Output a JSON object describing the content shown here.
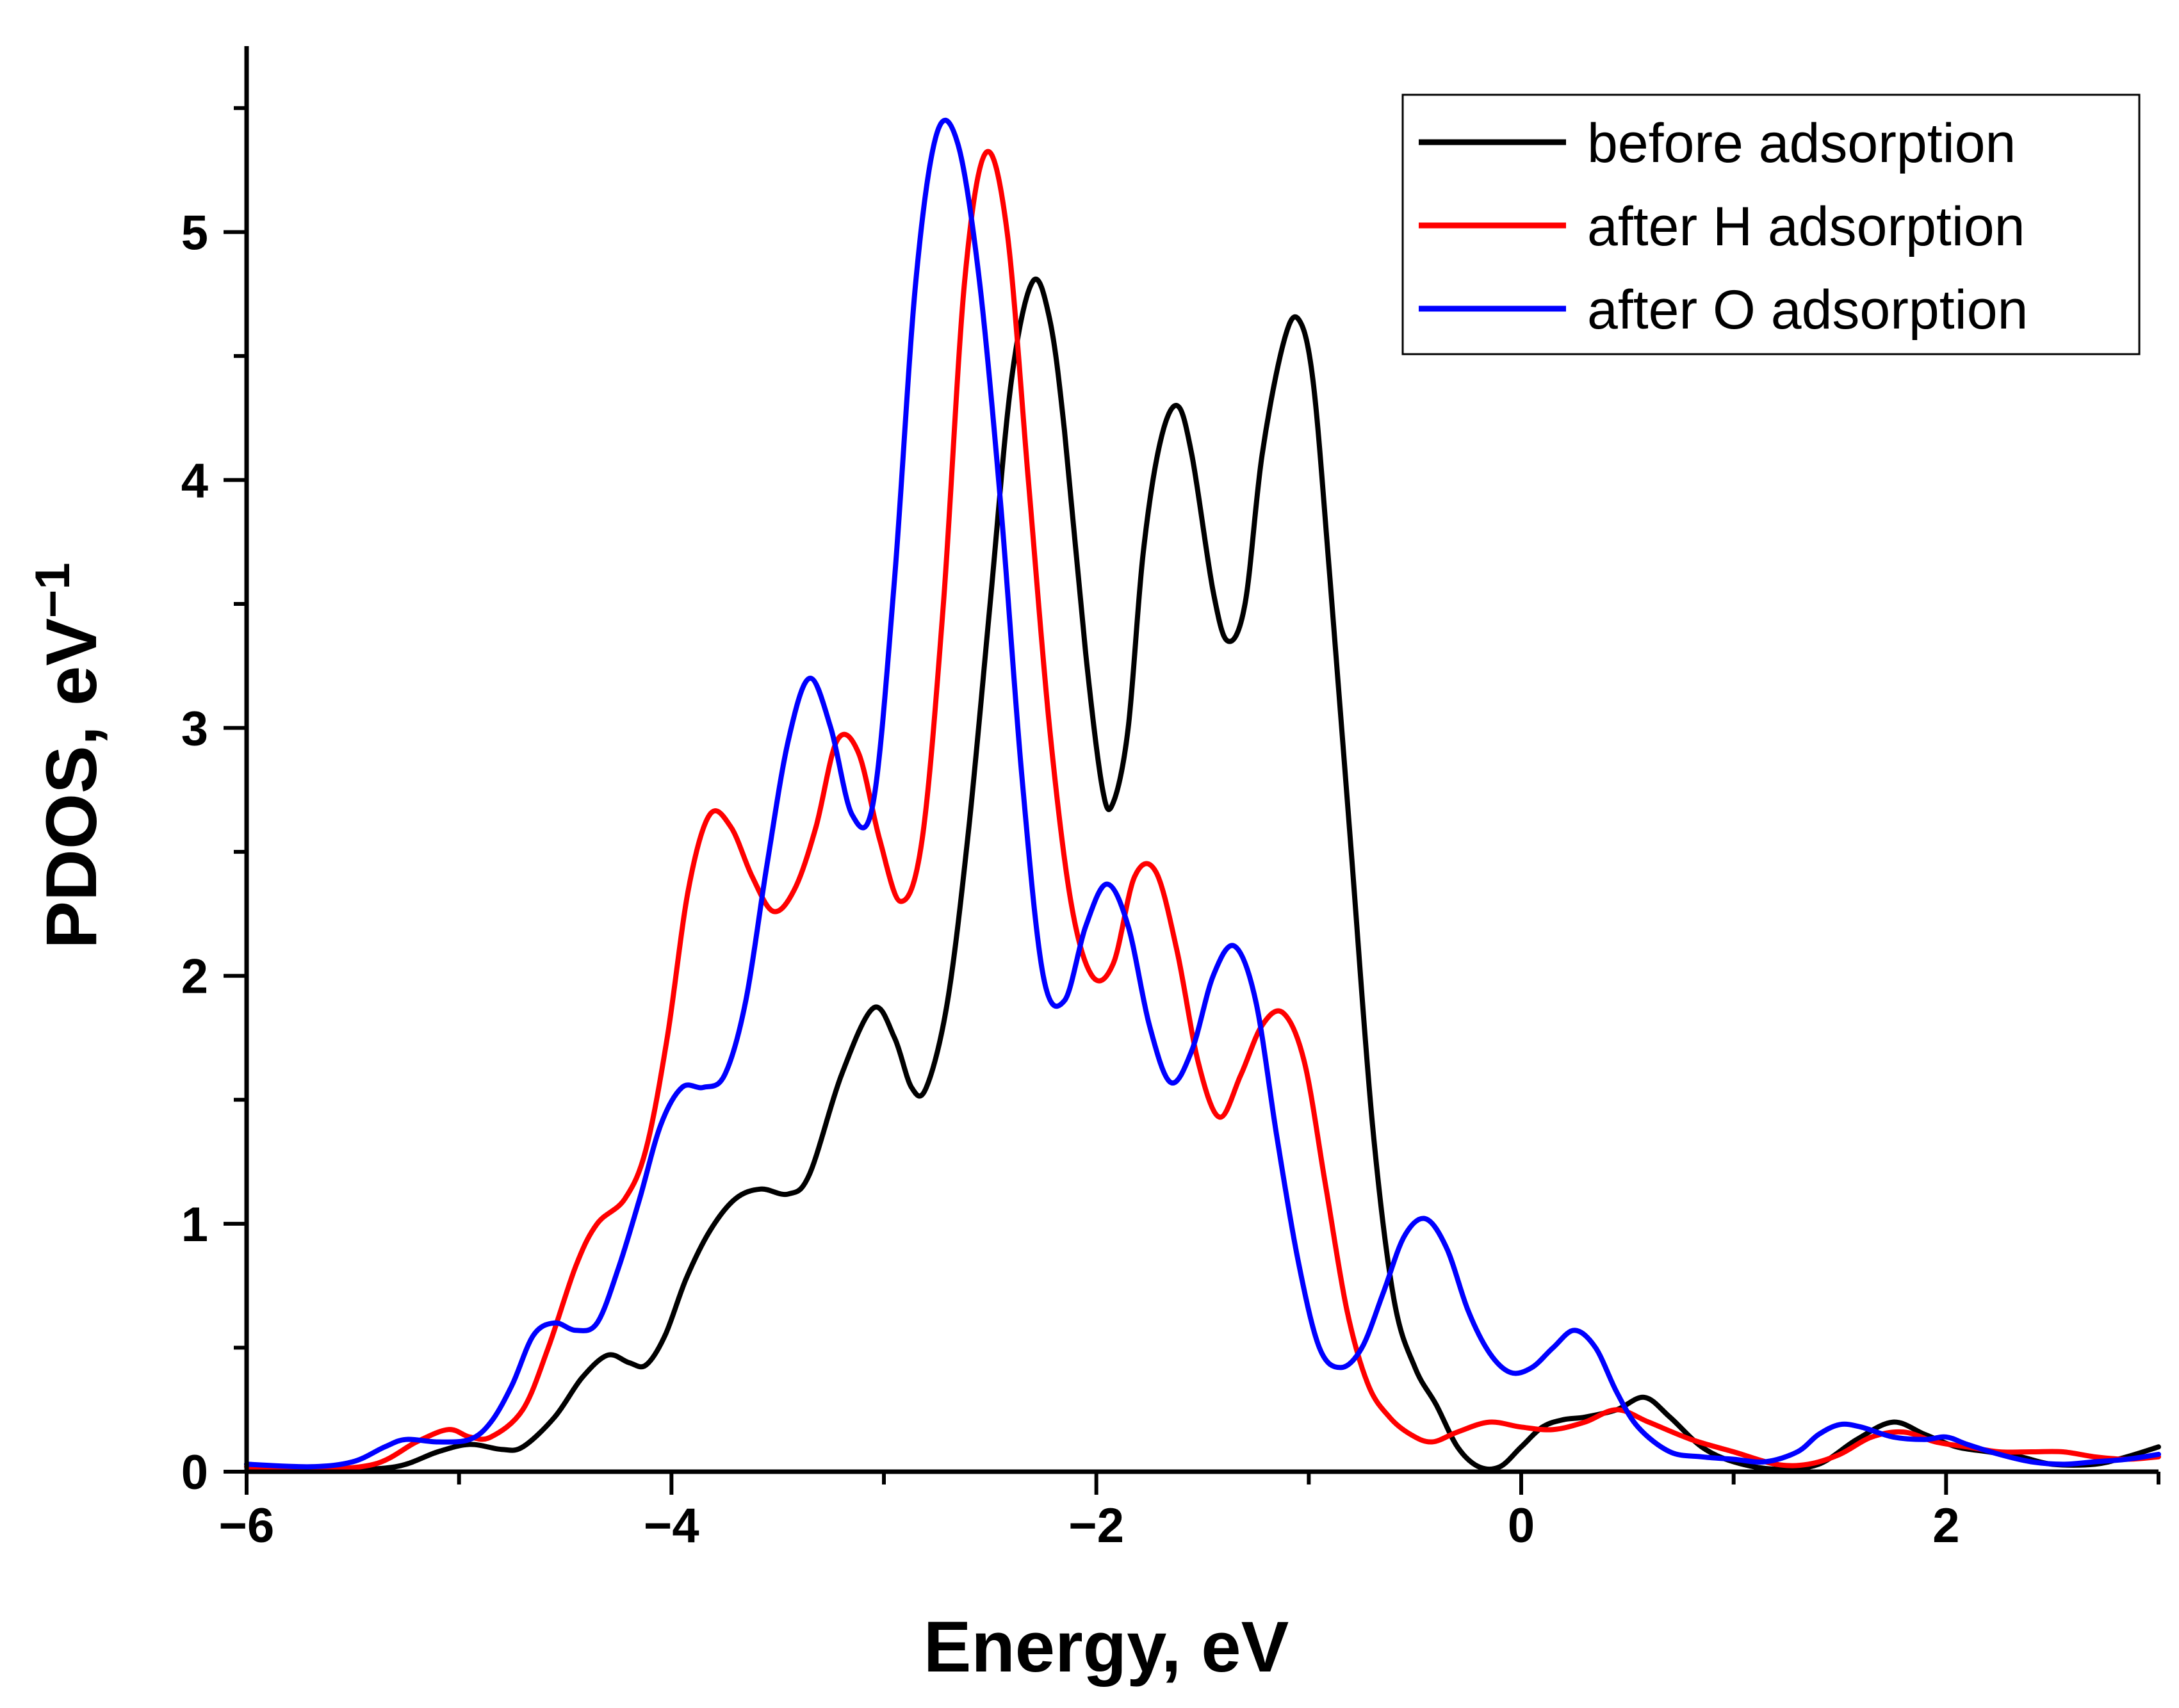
{
  "chart_data": {
    "type": "line",
    "title": "",
    "xlabel": "Energy, eV",
    "ylabel": "PDOS, eV",
    "ylabel_superscript": "−1",
    "xlim": [
      -6,
      3
    ],
    "ylim": [
      0,
      5.75
    ],
    "xticks": [
      -6,
      -4,
      -2,
      0,
      2
    ],
    "xtick_labels": [
      "−6",
      "−4",
      "−2",
      "0",
      "2"
    ],
    "yticks": [
      0,
      1,
      2,
      3,
      4,
      5
    ],
    "ytick_labels": [
      "0",
      "1",
      "2",
      "3",
      "4",
      "5"
    ],
    "legend_position": "top-right",
    "series": [
      {
        "name": "before adsorption",
        "color": "#000000",
        "points": [
          [
            -6.0,
            0.03
          ],
          [
            -5.6,
            0.01
          ],
          [
            -5.3,
            0.02
          ],
          [
            -5.1,
            0.08
          ],
          [
            -4.95,
            0.11
          ],
          [
            -4.8,
            0.09
          ],
          [
            -4.7,
            0.1
          ],
          [
            -4.55,
            0.22
          ],
          [
            -4.42,
            0.38
          ],
          [
            -4.3,
            0.47
          ],
          [
            -4.2,
            0.44
          ],
          [
            -4.12,
            0.43
          ],
          [
            -4.03,
            0.55
          ],
          [
            -3.93,
            0.78
          ],
          [
            -3.82,
            0.97
          ],
          [
            -3.7,
            1.1
          ],
          [
            -3.58,
            1.14
          ],
          [
            -3.45,
            1.12
          ],
          [
            -3.35,
            1.2
          ],
          [
            -3.2,
            1.6
          ],
          [
            -3.05,
            1.87
          ],
          [
            -2.95,
            1.75
          ],
          [
            -2.87,
            1.55
          ],
          [
            -2.8,
            1.55
          ],
          [
            -2.7,
            1.9
          ],
          [
            -2.6,
            2.6
          ],
          [
            -2.5,
            3.5
          ],
          [
            -2.4,
            4.4
          ],
          [
            -2.3,
            4.8
          ],
          [
            -2.22,
            4.65
          ],
          [
            -2.15,
            4.2
          ],
          [
            -2.05,
            3.3
          ],
          [
            -1.97,
            2.75
          ],
          [
            -1.92,
            2.7
          ],
          [
            -1.85,
            3.0
          ],
          [
            -1.78,
            3.7
          ],
          [
            -1.7,
            4.15
          ],
          [
            -1.62,
            4.3
          ],
          [
            -1.55,
            4.1
          ],
          [
            -1.45,
            3.55
          ],
          [
            -1.38,
            3.35
          ],
          [
            -1.3,
            3.5
          ],
          [
            -1.22,
            4.1
          ],
          [
            -1.12,
            4.55
          ],
          [
            -1.05,
            4.65
          ],
          [
            -0.98,
            4.4
          ],
          [
            -0.9,
            3.6
          ],
          [
            -0.8,
            2.5
          ],
          [
            -0.7,
            1.4
          ],
          [
            -0.6,
            0.7
          ],
          [
            -0.5,
            0.42
          ],
          [
            -0.4,
            0.27
          ],
          [
            -0.3,
            0.1
          ],
          [
            -0.2,
            0.02
          ],
          [
            -0.1,
            0.02
          ],
          [
            0.0,
            0.1
          ],
          [
            0.1,
            0.18
          ],
          [
            0.2,
            0.21
          ],
          [
            0.3,
            0.22
          ],
          [
            0.45,
            0.25
          ],
          [
            0.58,
            0.3
          ],
          [
            0.7,
            0.22
          ],
          [
            0.85,
            0.1
          ],
          [
            1.0,
            0.04
          ],
          [
            1.2,
            0.01
          ],
          [
            1.4,
            0.03
          ],
          [
            1.58,
            0.13
          ],
          [
            1.75,
            0.2
          ],
          [
            1.9,
            0.15
          ],
          [
            2.05,
            0.1
          ],
          [
            2.2,
            0.08
          ],
          [
            2.35,
            0.06
          ],
          [
            2.5,
            0.03
          ],
          [
            2.7,
            0.03
          ],
          [
            2.85,
            0.06
          ],
          [
            3.0,
            0.1
          ]
        ]
      },
      {
        "name": "after H adsorption",
        "color": "#ff0000",
        "points": [
          [
            -6.0,
            0.02
          ],
          [
            -5.7,
            0.01
          ],
          [
            -5.4,
            0.03
          ],
          [
            -5.2,
            0.12
          ],
          [
            -5.05,
            0.17
          ],
          [
            -4.95,
            0.14
          ],
          [
            -4.85,
            0.14
          ],
          [
            -4.7,
            0.25
          ],
          [
            -4.58,
            0.5
          ],
          [
            -4.45,
            0.83
          ],
          [
            -4.35,
            1.0
          ],
          [
            -4.22,
            1.1
          ],
          [
            -4.12,
            1.3
          ],
          [
            -4.02,
            1.75
          ],
          [
            -3.92,
            2.35
          ],
          [
            -3.82,
            2.65
          ],
          [
            -3.72,
            2.6
          ],
          [
            -3.62,
            2.4
          ],
          [
            -3.52,
            2.26
          ],
          [
            -3.42,
            2.35
          ],
          [
            -3.32,
            2.6
          ],
          [
            -3.22,
            2.95
          ],
          [
            -3.12,
            2.9
          ],
          [
            -3.02,
            2.55
          ],
          [
            -2.92,
            2.3
          ],
          [
            -2.82,
            2.55
          ],
          [
            -2.72,
            3.5
          ],
          [
            -2.62,
            4.8
          ],
          [
            -2.52,
            5.32
          ],
          [
            -2.42,
            5.0
          ],
          [
            -2.32,
            4.0
          ],
          [
            -2.22,
            3.0
          ],
          [
            -2.12,
            2.3
          ],
          [
            -2.02,
            2.0
          ],
          [
            -1.92,
            2.05
          ],
          [
            -1.82,
            2.4
          ],
          [
            -1.72,
            2.42
          ],
          [
            -1.62,
            2.1
          ],
          [
            -1.52,
            1.65
          ],
          [
            -1.42,
            1.43
          ],
          [
            -1.32,
            1.6
          ],
          [
            -1.22,
            1.8
          ],
          [
            -1.12,
            1.85
          ],
          [
            -1.02,
            1.65
          ],
          [
            -0.92,
            1.15
          ],
          [
            -0.82,
            0.65
          ],
          [
            -0.72,
            0.35
          ],
          [
            -0.62,
            0.22
          ],
          [
            -0.52,
            0.15
          ],
          [
            -0.42,
            0.12
          ],
          [
            -0.3,
            0.16
          ],
          [
            -0.15,
            0.2
          ],
          [
            0.0,
            0.18
          ],
          [
            0.15,
            0.17
          ],
          [
            0.3,
            0.2
          ],
          [
            0.45,
            0.25
          ],
          [
            0.6,
            0.2
          ],
          [
            0.8,
            0.13
          ],
          [
            1.0,
            0.08
          ],
          [
            1.2,
            0.03
          ],
          [
            1.35,
            0.03
          ],
          [
            1.5,
            0.07
          ],
          [
            1.65,
            0.14
          ],
          [
            1.8,
            0.16
          ],
          [
            1.95,
            0.12
          ],
          [
            2.1,
            0.1
          ],
          [
            2.25,
            0.08
          ],
          [
            2.4,
            0.08
          ],
          [
            2.55,
            0.08
          ],
          [
            2.7,
            0.06
          ],
          [
            2.85,
            0.05
          ],
          [
            3.0,
            0.06
          ]
        ]
      },
      {
        "name": "after O adsorption",
        "color": "#0000ff",
        "points": [
          [
            -6.0,
            0.03
          ],
          [
            -5.7,
            0.02
          ],
          [
            -5.5,
            0.04
          ],
          [
            -5.35,
            0.1
          ],
          [
            -5.25,
            0.13
          ],
          [
            -5.1,
            0.12
          ],
          [
            -4.95,
            0.13
          ],
          [
            -4.85,
            0.2
          ],
          [
            -4.75,
            0.35
          ],
          [
            -4.65,
            0.55
          ],
          [
            -4.55,
            0.6
          ],
          [
            -4.45,
            0.57
          ],
          [
            -4.35,
            0.6
          ],
          [
            -4.25,
            0.82
          ],
          [
            -4.15,
            1.1
          ],
          [
            -4.05,
            1.4
          ],
          [
            -3.95,
            1.55
          ],
          [
            -3.85,
            1.55
          ],
          [
            -3.75,
            1.6
          ],
          [
            -3.65,
            1.9
          ],
          [
            -3.55,
            2.45
          ],
          [
            -3.45,
            2.95
          ],
          [
            -3.35,
            3.2
          ],
          [
            -3.25,
            3.0
          ],
          [
            -3.15,
            2.65
          ],
          [
            -3.05,
            2.7
          ],
          [
            -2.95,
            3.6
          ],
          [
            -2.85,
            4.8
          ],
          [
            -2.75,
            5.4
          ],
          [
            -2.65,
            5.35
          ],
          [
            -2.55,
            4.8
          ],
          [
            -2.45,
            3.9
          ],
          [
            -2.35,
            2.8
          ],
          [
            -2.25,
            2.0
          ],
          [
            -2.15,
            1.9
          ],
          [
            -2.05,
            2.2
          ],
          [
            -1.95,
            2.37
          ],
          [
            -1.85,
            2.2
          ],
          [
            -1.75,
            1.8
          ],
          [
            -1.65,
            1.57
          ],
          [
            -1.55,
            1.7
          ],
          [
            -1.45,
            2.0
          ],
          [
            -1.35,
            2.12
          ],
          [
            -1.25,
            1.9
          ],
          [
            -1.15,
            1.35
          ],
          [
            -1.05,
            0.85
          ],
          [
            -0.95,
            0.5
          ],
          [
            -0.85,
            0.42
          ],
          [
            -0.75,
            0.5
          ],
          [
            -0.65,
            0.72
          ],
          [
            -0.55,
            0.95
          ],
          [
            -0.45,
            1.02
          ],
          [
            -0.35,
            0.9
          ],
          [
            -0.25,
            0.65
          ],
          [
            -0.15,
            0.48
          ],
          [
            -0.05,
            0.4
          ],
          [
            0.05,
            0.42
          ],
          [
            0.15,
            0.5
          ],
          [
            0.25,
            0.57
          ],
          [
            0.35,
            0.5
          ],
          [
            0.45,
            0.32
          ],
          [
            0.55,
            0.18
          ],
          [
            0.7,
            0.08
          ],
          [
            0.85,
            0.06
          ],
          [
            1.0,
            0.05
          ],
          [
            1.15,
            0.04
          ],
          [
            1.3,
            0.08
          ],
          [
            1.4,
            0.15
          ],
          [
            1.5,
            0.19
          ],
          [
            1.6,
            0.18
          ],
          [
            1.75,
            0.14
          ],
          [
            1.9,
            0.13
          ],
          [
            2.0,
            0.14
          ],
          [
            2.1,
            0.11
          ],
          [
            2.25,
            0.07
          ],
          [
            2.4,
            0.04
          ],
          [
            2.55,
            0.03
          ],
          [
            2.7,
            0.04
          ],
          [
            2.85,
            0.05
          ],
          [
            3.0,
            0.07
          ]
        ]
      }
    ]
  }
}
